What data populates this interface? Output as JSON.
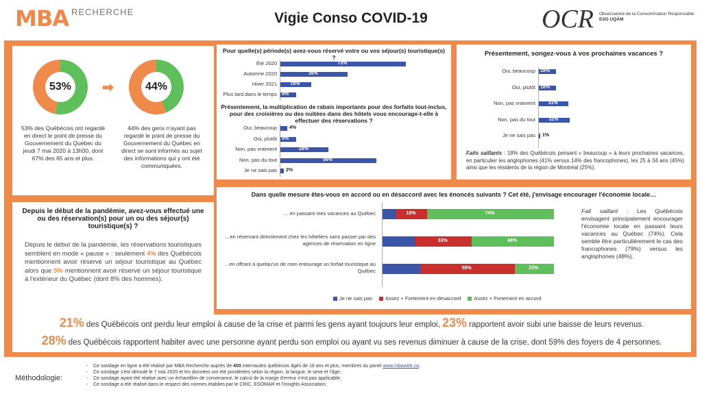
{
  "header": {
    "logo": "MBA",
    "logo_sub": "RECHERCHE",
    "title": "Vigie Conso COVID-19",
    "ocr": "OCR",
    "ocr_text1": "Observatoire de la Consommation Responsable",
    "ocr_text2": "ESG UQÀM"
  },
  "donuts": [
    {
      "pct": "53%",
      "value": 53,
      "text": "53% des Québécois ont regardé en direct le point de presse du Gouvernement du Québec du jeudi 7 mai 2020 à 13h00, dont 67% des 65 ans et plus.",
      "orange": "#ef8a4b",
      "green": "#5fbf5a"
    },
    {
      "pct": "44%",
      "value": 44,
      "text": "44% des gens n'ayant pas regardé le point de presse du Gouvernement du Québec en direct se sont informés au sujet des informations qui y ont été communiquées.",
      "orange": "#ef8a4b",
      "green": "#5fbf5a"
    }
  ],
  "q_period": {
    "title": "Pour quelle(s) période(s) avez-vous réservé votre ou vos séjour(s) touristique(s) ?",
    "items": [
      {
        "label": "Été 2020",
        "value": 73,
        "text": "73%"
      },
      {
        "label": "Automne 2020",
        "value": 39,
        "text": "39%"
      },
      {
        "label": "Hiver 2021",
        "value": 18,
        "text": "18%"
      },
      {
        "label": "Plus tard dans le temps",
        "value": 9,
        "text": "9%"
      }
    ]
  },
  "q_rabais": {
    "title": "Présentement, la multiplication de rabais importants pour des forfaits tout-inclus, pour des croisières ou des nuitées dans des hôtels vous encourage-t-elle à effectuer des réservations ?",
    "items": [
      {
        "label": "Oui, beaucoup",
        "value": 4,
        "text": "4%"
      },
      {
        "label": "Oui, plutôt",
        "value": 9,
        "text": "9%"
      },
      {
        "label": "Non, pas vraiment",
        "value": 28,
        "text": "28%"
      },
      {
        "label": "Non, pas du tout",
        "value": 56,
        "text": "56%"
      },
      {
        "label": "Je ne sais pas",
        "value": 2,
        "text": "2%"
      }
    ]
  },
  "q_vacances": {
    "title": "Présentement, songez-vous à vos prochaines vacances ?",
    "items": [
      {
        "label": "Oui, beaucoup",
        "value": 18,
        "text": "18%"
      },
      {
        "label": "Oui, plutôt",
        "value": 18,
        "text": "18%"
      },
      {
        "label": "Non, pas vraiment",
        "value": 31,
        "text": "31%"
      },
      {
        "label": "Non, pas du tout",
        "value": 32,
        "text": "32%"
      },
      {
        "label": "Je ne sais pas",
        "value": 1,
        "text": "1%"
      }
    ],
    "faits_label": "Faits saillants",
    "faits_text": " : 18% des Québécois pensent « beaucoup » à leurs prochaines vacances, en particulier les anglophones (41% versus 14% des francophones), les 25 à 34 ans (45%) ainsi que les résidents de la région de Montréal (25%)."
  },
  "q_reservation": {
    "title": "Depuis le début de la pandémie, avez-vous effectué une ou des réservation(s) pour un ou des séjour(s) touristique(s) ?",
    "t1": "Depuis le début de la pandémie, les réservations touristiques semblent en mode « pause » : seulement ",
    "p1": "4%",
    "t2": " des Québécois mentionnent avoir réservé un séjour touristique au Québec alors que ",
    "p2": "5%",
    "t3": " mentionnent avoir réservé un séjour touristique à l'extérieur du Québec (dont 8% des hommes)."
  },
  "q_accord": {
    "title": "Dans quelle mesure êtes-vous en accord ou en désaccord avec les énoncés suivants ? Cet été, j'envisage encourager l'économie locale…",
    "rows": [
      {
        "label": "… en passant mes vacances au Québec",
        "ns": 8,
        "dis": 18,
        "dis_t": "18%",
        "agr": 74,
        "agr_t": "74%"
      },
      {
        "label": "…en réservant directement chez les hôteliers sans passer par des agences de réservation en ligne",
        "ns": 19,
        "dis": 33,
        "dis_t": "33%",
        "agr": 48,
        "agr_t": "48%"
      },
      {
        "label": "…en offrant à quelqu'un de mon entourage un forfait touristique au Québec",
        "ns": 22,
        "dis": 55,
        "dis_t": "55%",
        "agr": 23,
        "agr_t": "23%"
      }
    ],
    "legend": [
      "Je ne sais pas",
      "Assez + Fortement en désaccord",
      "Assez + Fortement en accord"
    ],
    "colors": [
      "#3b55a8",
      "#c9302c",
      "#5fbf5a"
    ],
    "side_label": "Fait saillant",
    "side_text": " : Les Québécois envisagent principalement encourager l'économie locale en passant leurs vacances au Québec (74%). Cela semble être particulièrement le cas des francophones (79%) versus les anglophones (48%)."
  },
  "bottom": {
    "b1": "21%",
    "t1": " des Québécois ont perdu leur emploi à cause de la crise et parmi les gens ayant toujours leur emploi, ",
    "b2": "23%",
    "t2": " rapportent avoir subi une baisse de leurs revenus.",
    "b3": "28%",
    "t3": " des Québécois rapportent habiter avec une personne ayant perdu son emploi ou ayant vu ses revenus diminuer à cause de la crise, dont 59% des foyers de 4 personnes."
  },
  "methodo": {
    "label": "Méthodologie:",
    "l1a": "Ce sondage en ligne a été réalisé par MBA Recherche auprès de ",
    "l1b": "400",
    "l1c": " internautes québécois âgés de 18 ans et plus, membres du panel ",
    "l1d": "www.mbaweb.ca",
    "l1e": ";",
    "l2": "Ce sondage s'est déroulé le 7 mai 2020 et les données ont été pondérées selon la région, la langue, le sexe et l'âge;",
    "l3": "Ce sondage ayant été réalisé avec un échantillon de convenance, le calcul de la marge d'erreur n'est pas applicable;",
    "l4": "Ce sondage a été réalisé dans le respect des normes établies par le CRIC, ESOMAR et l'Insights Association;"
  }
}
